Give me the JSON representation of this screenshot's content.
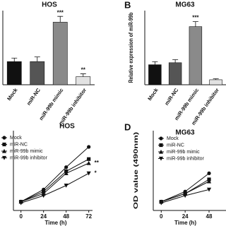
{
  "chart_data": [
    {
      "type": "bar",
      "title": "HOS",
      "categories": [
        "Mock",
        "miR-NC",
        "miR-99b mimic",
        "miR-99b inhibitor"
      ],
      "values": [
        1.0,
        1.0,
        2.7,
        0.35
      ],
      "errors": [
        0.15,
        0.2,
        0.25,
        0.12
      ],
      "colors": [
        "#111111",
        "#555555",
        "#8a8a8a",
        "#e2e2e2"
      ],
      "ylim": [
        0,
        3.2
      ],
      "annotations": [
        {
          "label": "***",
          "category": "miR-99b mimic"
        },
        {
          "label": "**",
          "category": "miR-99b inhibitor"
        }
      ]
    },
    {
      "type": "bar",
      "panel": "B",
      "title": "MG63",
      "ylabel": "Relative expression of miR-99b",
      "categories": [
        "Mock",
        "miR-NC",
        "miR-99b mimic",
        "miR-99b inhibitor"
      ],
      "values": [
        1.0,
        1.1,
        2.9,
        0.25
      ],
      "errors": [
        0.15,
        0.15,
        0.25,
        0.05
      ],
      "colors": [
        "#111111",
        "#555555",
        "#8a8a8a",
        "#e2e2e2"
      ],
      "ylim": [
        0,
        3.7
      ],
      "annotations": [
        {
          "label": "***",
          "category": "miR-99b mimic"
        }
      ]
    },
    {
      "type": "line",
      "title": "HOS",
      "xlabel": "Time (h)",
      "x": [
        0,
        24,
        48,
        72
      ],
      "xlim": [
        -8,
        76
      ],
      "xticks": [
        0,
        24,
        48,
        72
      ],
      "ylim": [
        0,
        2
      ],
      "legend": "upper-left",
      "series": [
        {
          "name": "Mock",
          "color": "#111111",
          "marker": "circle",
          "values": [
            0.25,
            0.55,
            1.1,
            1.6
          ]
        },
        {
          "name": "miR-NC",
          "color": "#111111",
          "marker": "square",
          "values": [
            0.25,
            0.5,
            1.0,
            1.3
          ]
        },
        {
          "name": "miR-99b mimic",
          "color": "#111111",
          "marker": "triangle-up",
          "values": [
            0.25,
            0.45,
            0.95,
            1.2
          ]
        },
        {
          "name": "miR-99b inhibitor",
          "color": "#111111",
          "marker": "triangle-down",
          "values": [
            0.22,
            0.4,
            0.65,
            0.95
          ]
        }
      ],
      "annotations": [
        {
          "label": "**",
          "series": "miR-99b mimic"
        },
        {
          "label": "*",
          "series": "miR-99b inhibitor"
        }
      ]
    },
    {
      "type": "line",
      "panel": "D",
      "title": "MG63",
      "xlabel": "Time (h)",
      "ylabel": "OD value (490nm)",
      "x": [
        0,
        24,
        48
      ],
      "xlim": [
        -8,
        65
      ],
      "xticks": [
        0,
        24,
        48
      ],
      "ylim": [
        0,
        2
      ],
      "legend": "upper-left",
      "series": [
        {
          "name": "Mock",
          "color": "#111111",
          "marker": "circle",
          "values": [
            0.25,
            0.5,
            0.95
          ]
        },
        {
          "name": "miR-NC",
          "color": "#111111",
          "marker": "square",
          "values": [
            0.25,
            0.45,
            0.8
          ]
        },
        {
          "name": "miR-99b mimic",
          "color": "#111111",
          "marker": "triangle-up",
          "values": [
            0.25,
            0.45,
            0.75
          ]
        },
        {
          "name": "miR-99b inhibitor",
          "color": "#111111",
          "marker": "triangle-down",
          "values": [
            0.22,
            0.4,
            0.55
          ]
        }
      ]
    }
  ]
}
